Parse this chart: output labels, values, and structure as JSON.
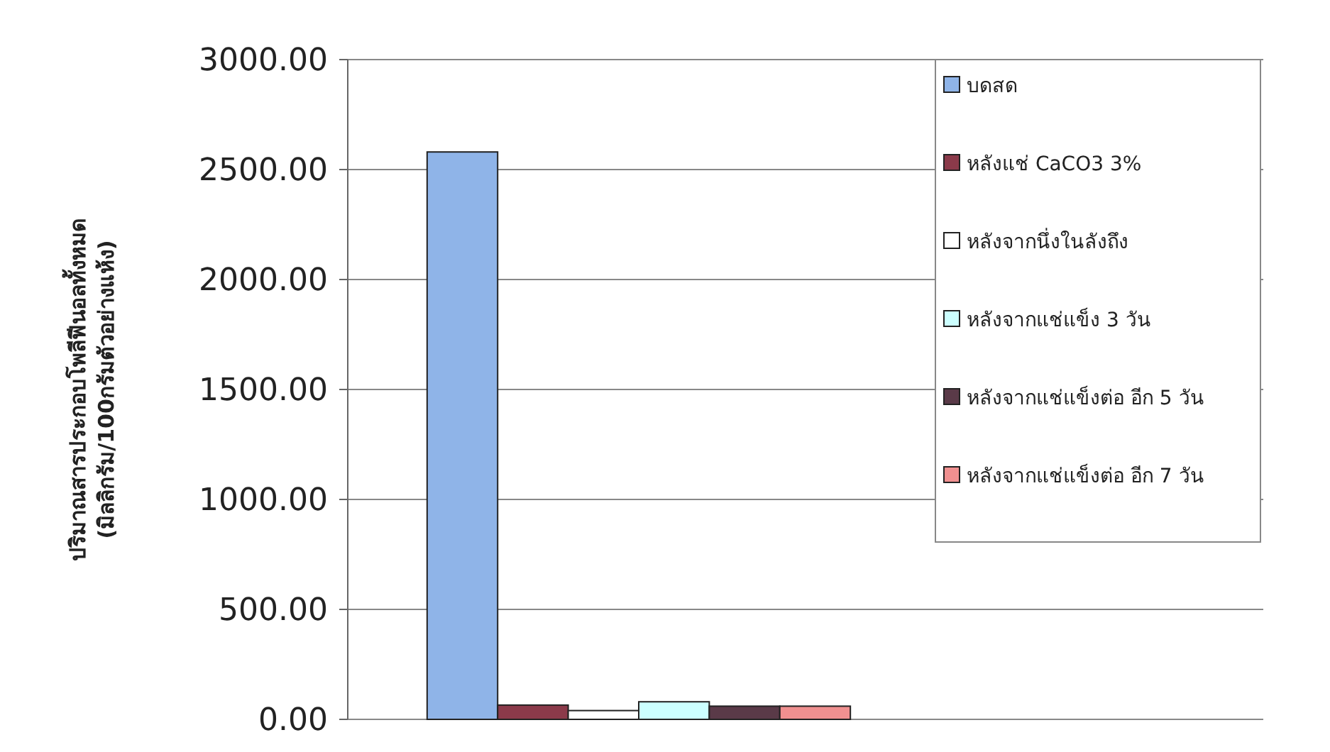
{
  "chart_data": {
    "type": "bar",
    "ylabel": "ปริมาณสารประกอบโพลีฟีนอลทั้งหมด\n(มิลลิกรัม/100กรัมตัวอย่างแห้ง)",
    "categories": [
      null
    ],
    "series": [
      {
        "name": "บดสด",
        "color": "#8fb4e8",
        "values": [
          2580
        ]
      },
      {
        "name": "หลังแช่ CaCO3 3%",
        "color": "#8b3a4a",
        "values": [
          65
        ]
      },
      {
        "name": "หลังจากนึ่งในลังถึง",
        "color": "#ffffff",
        "values": [
          40
        ]
      },
      {
        "name": "หลังจากแช่แข็ง 3 วัน",
        "color": "#ccffff",
        "values": [
          80
        ]
      },
      {
        "name": "หลังจากแช่แข็งต่อ อีก 5 วัน",
        "color": "#5a3a48",
        "values": [
          60
        ]
      },
      {
        "name": "หลังจากแช่แข็งต่อ อีก 7 วัน",
        "color": "#f09090",
        "values": [
          60
        ]
      }
    ],
    "ylim": [
      0,
      3000
    ],
    "yticks": [
      {
        "value": 0,
        "label": "0.00"
      },
      {
        "value": 500,
        "label": "500.00"
      },
      {
        "value": 1000,
        "label": "1000.00"
      },
      {
        "value": 1500,
        "label": "1500.00"
      },
      {
        "value": 2000,
        "label": "2000.00"
      },
      {
        "value": 2500,
        "label": "2500.00"
      },
      {
        "value": 3000,
        "label": "3000.00"
      }
    ],
    "grid": "y",
    "legend": "right"
  }
}
